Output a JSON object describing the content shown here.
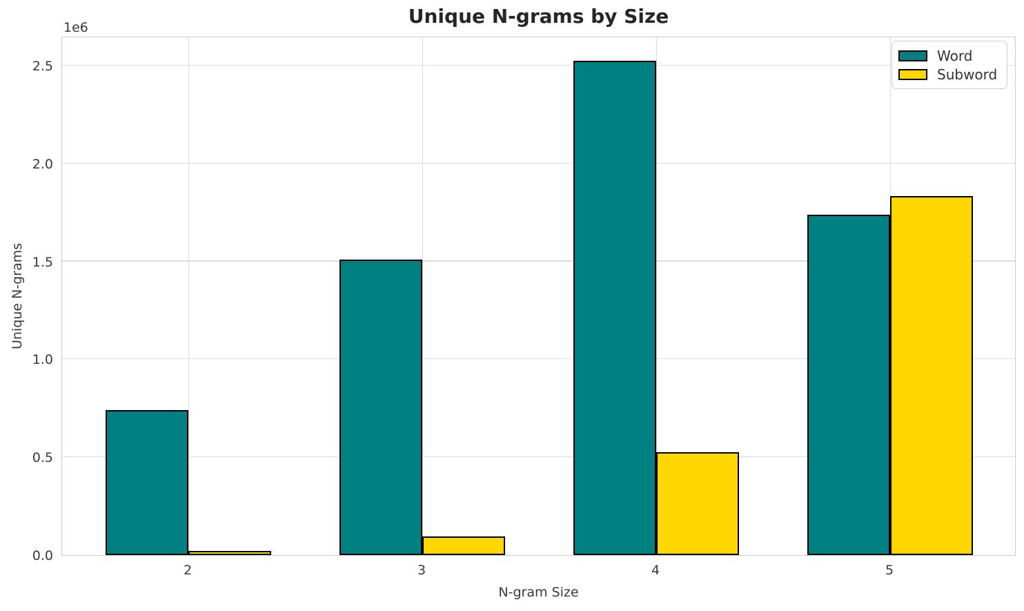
{
  "chart_data": {
    "type": "bar",
    "title": "Unique N-grams by Size",
    "xlabel": "N-gram Size",
    "ylabel": "Unique N-grams",
    "offset_label": "1e6",
    "categories": [
      "2",
      "3",
      "4",
      "5"
    ],
    "series": [
      {
        "name": "Word",
        "color": "#008080",
        "values": [
          740000,
          1510000,
          2525000,
          1740000
        ]
      },
      {
        "name": "Subword",
        "color": "#FFD700",
        "values": [
          20000,
          95000,
          525000,
          1835000
        ]
      }
    ],
    "bar_edge_color": "#000000",
    "y_ticks": [
      {
        "label": "0.0",
        "value": 0
      },
      {
        "label": "0.5",
        "value": 500000
      },
      {
        "label": "1.0",
        "value": 1000000
      },
      {
        "label": "1.5",
        "value": 1500000
      },
      {
        "label": "2.0",
        "value": 2000000
      },
      {
        "label": "2.5",
        "value": 2500000
      }
    ],
    "ylim": [
      0,
      2652000
    ],
    "grid": true,
    "legend": {
      "position": "upper right",
      "entries": [
        "Word",
        "Subword"
      ]
    }
  }
}
